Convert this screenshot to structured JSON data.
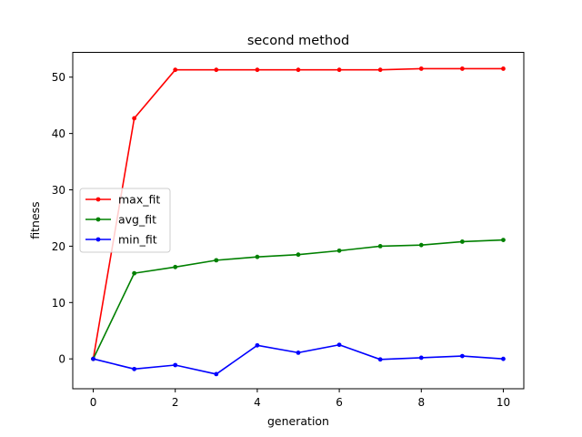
{
  "chart_data": {
    "type": "line",
    "title": "second method",
    "xlabel": "generation",
    "ylabel": "fitness",
    "xlim": [
      -0.5,
      10.5
    ],
    "ylim": [
      -5.3,
      54.4
    ],
    "xticks": [
      0,
      2,
      4,
      6,
      8,
      10
    ],
    "yticks": [
      0,
      10,
      20,
      30,
      40,
      50
    ],
    "grid": false,
    "legend_position": "center-left",
    "x": [
      0,
      1,
      2,
      3,
      4,
      5,
      6,
      7,
      8,
      9,
      10
    ],
    "series": [
      {
        "name": "max_fit",
        "color": "#ff0000",
        "values": [
          0.0,
          42.7,
          51.3,
          51.3,
          51.3,
          51.3,
          51.3,
          51.3,
          51.5,
          51.5,
          51.5
        ]
      },
      {
        "name": "avg_fit",
        "color": "#008000",
        "values": [
          0.0,
          15.2,
          16.3,
          17.5,
          18.1,
          18.5,
          19.2,
          20.0,
          20.2,
          20.8,
          21.1
        ]
      },
      {
        "name": "min_fit",
        "color": "#0000ff",
        "values": [
          0.0,
          -1.8,
          -1.1,
          -2.7,
          2.4,
          1.1,
          2.5,
          -0.1,
          0.2,
          0.5,
          0.0
        ]
      }
    ]
  }
}
